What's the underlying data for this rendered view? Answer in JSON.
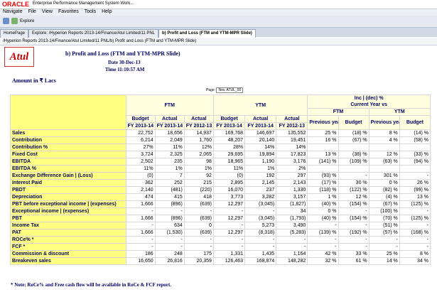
{
  "app": {
    "brand": "ORACLE",
    "title": "Enterprise Performance Management System Work...",
    "menu": [
      "Navigate",
      "File",
      "View",
      "Favorites",
      "Tools",
      "Help"
    ],
    "toolbar": "Explore",
    "tabs": [
      "HomePage",
      "Explore: /Hyperion Reports 2013-14/Finance/Atul Limited/11 PNL",
      "b) Profit and Loss (FTM and YTM-MPR Slide)"
    ],
    "path": "/Hyperion Reports 2013-14/Finance/Atul Limited/11 PNL/b) Profit and Loss (FTM and YTM-MPR Slide)"
  },
  "report": {
    "logo": "Atul",
    "title": "b) Profit and Loss (FTM and YTM-MPR Slide)",
    "date": "Date 30-Dec-13",
    "time": "Time 11:10:57 AM",
    "unit": "Amount in ₹ Lacs",
    "page_label": "Page:",
    "page_value": "Nov, ATUL_00",
    "groups": [
      "FTM",
      "YTM",
      "Inc | (dec) %",
      "Current Year vs"
    ],
    "subgroups": [
      "FTM",
      "YTM"
    ],
    "col_heads": [
      "Budget",
      "Actual",
      "Actual",
      "Budget",
      "Actual",
      "Actual",
      "Previous year",
      "Budget",
      "Previous year",
      "Budget"
    ],
    "col_years": [
      "FY 2013-14",
      "FY 2013-14",
      "FY 2012-13",
      "FY 2013-14",
      "FY 2013-14",
      "FY 2012-13"
    ],
    "rows": [
      {
        "label": "Sales",
        "cells": [
          "22,752",
          "18,656",
          "14,937",
          "169,768",
          "146,697",
          "135,552",
          "25 %",
          "(18) %",
          "8 %",
          "(14) %"
        ]
      },
      {
        "label": "Contribution",
        "cells": [
          "6,214",
          "2,049",
          "1,760",
          "48,207",
          "20,140",
          "19,451",
          "16 %",
          "(67) %",
          "4 %",
          "(58) %"
        ]
      },
      {
        "label": "Contribution %",
        "cells": [
          "27%",
          "11%",
          "12%",
          "28%",
          "14%",
          "14%",
          null,
          null,
          null,
          null
        ]
      },
      {
        "label": "Fixed Cost",
        "cells": [
          "3,724",
          "2,325",
          "2,065",
          "29,695",
          "19,894",
          "17,823",
          "13 %",
          "(38) %",
          "12 %",
          "(33) %"
        ]
      },
      {
        "label": "EBITDA",
        "cells": [
          "2,502",
          "235",
          "98",
          "18,965",
          "1,190",
          "3,176",
          "(141) %",
          "(109) %",
          "(63) %",
          "(94) %"
        ]
      },
      {
        "label": "EBITDA %",
        "cells": [
          "11%",
          "1%",
          "1%",
          "11%",
          "1%",
          "2%",
          null,
          null,
          null,
          null
        ]
      },
      {
        "label": "Exchange Difference Gain | (Loss)",
        "cells": [
          "(0)",
          "7",
          "92",
          "(0)",
          "192",
          "297",
          "(93) %",
          "-",
          "301 %",
          "-"
        ]
      },
      {
        "label": "Interest Paid",
        "cells": [
          "362",
          "252",
          "215",
          "2,895",
          "2,145",
          "2,143",
          "(17) %",
          "30 %",
          "0 %",
          "26 %"
        ]
      },
      {
        "label": "PBDT",
        "cells": [
          "2,140",
          "(481)",
          "(220)",
          "16,070",
          "237",
          "1,330",
          "(118) %",
          "(122) %",
          "(82) %",
          "(99) %"
        ]
      },
      {
        "label": "Depreciation",
        "cells": [
          "474",
          "415",
          "418",
          "3,773",
          "3,282",
          "3,157",
          "1 %",
          "12 %",
          "(4) %",
          "13 %"
        ]
      },
      {
        "label": "PBT before exceptional income | (expenses)",
        "cells": [
          "1,666",
          "(896)",
          "(639)",
          "12,297",
          "(3,045)",
          "(1,827)",
          "(40) %",
          "(154) %",
          "(67) %",
          "(125) %"
        ]
      },
      {
        "label": "Exceptional income | (expenses)",
        "cells": [
          "-",
          "-",
          "-",
          "-",
          "-",
          "34",
          "0 %",
          "-",
          "(100) %",
          "-"
        ]
      },
      {
        "label": "PBT",
        "cells": [
          "1,666",
          "(896)",
          "(639)",
          "12,297",
          "(3,045)",
          "(1,793)",
          "(40) %",
          "(154) %",
          "(70) %",
          "(125) %"
        ]
      },
      {
        "label": "Income Tax",
        "cells": [
          "-",
          "634",
          "0",
          "-",
          "5,273",
          "3,490",
          "-",
          "-",
          "(51) %",
          "-"
        ]
      },
      {
        "label": "PAT",
        "cells": [
          "1,666",
          "(1,530)",
          "(639)",
          "12,297",
          "(8,318)",
          "(5,283)",
          "(139) %",
          "(192) %",
          "(57) %",
          "(168) %"
        ]
      },
      {
        "label": "ROCe% *",
        "cells": [
          "-",
          "-",
          "-",
          "-",
          "-",
          "-",
          "-",
          "-",
          "-",
          "-"
        ]
      },
      {
        "label": "FCF *",
        "cells": [
          "-",
          "-",
          "-",
          "-",
          "-",
          "-",
          "-",
          "-",
          "-",
          "-"
        ]
      },
      {
        "label": "Commission & discount",
        "cells": [
          "186",
          "248",
          "175",
          "1,331",
          "1,435",
          "1,164",
          "42 %",
          "33 %",
          "25 %",
          "8 %"
        ]
      },
      {
        "label": "Breakeven sales",
        "cells": [
          "16,650",
          "26,816",
          "20,359",
          "126,463",
          "168,874",
          "148,282",
          "32 %",
          "61 %",
          "14 %",
          "34 %"
        ]
      }
    ],
    "note": "* Note: RoCe% and Free cash flow will be available in RoCe & FCF report."
  }
}
